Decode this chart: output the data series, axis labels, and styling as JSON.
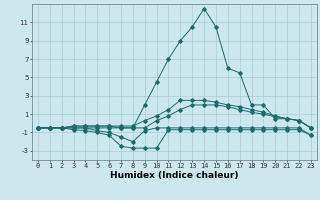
{
  "xlabel": "Humidex (Indice chaleur)",
  "background_color": "#cce8ee",
  "line_color": "#1a6b6b",
  "grid_color": "#aaccd4",
  "x_values": [
    0,
    1,
    2,
    3,
    4,
    5,
    6,
    7,
    8,
    9,
    10,
    11,
    12,
    13,
    14,
    15,
    16,
    17,
    18,
    19,
    20,
    21,
    22,
    23
  ],
  "lines": [
    [
      -0.5,
      -0.5,
      -0.5,
      -0.7,
      -0.8,
      -1.0,
      -1.3,
      -2.5,
      -2.7,
      -2.7,
      -2.7,
      -0.7,
      -0.7,
      -0.7,
      -0.7,
      -0.7,
      -0.7,
      -0.7,
      -0.7,
      -0.7,
      -0.7,
      -0.7,
      -0.7,
      -1.3
    ],
    [
      -0.5,
      -0.5,
      -0.5,
      -0.5,
      -0.5,
      -0.8,
      -1.0,
      -1.5,
      -2.0,
      -0.8,
      -0.5,
      -0.5,
      -0.5,
      -0.5,
      -0.5,
      -0.5,
      -0.5,
      -0.5,
      -0.5,
      -0.5,
      -0.5,
      -0.5,
      -0.5,
      -1.3
    ],
    [
      -0.5,
      -0.5,
      -0.5,
      -0.3,
      -0.3,
      -0.3,
      -0.3,
      -0.5,
      -0.5,
      -0.5,
      0.3,
      0.8,
      1.5,
      2.0,
      2.0,
      2.0,
      1.8,
      1.5,
      1.2,
      1.0,
      0.7,
      0.5,
      0.3,
      -0.5
    ],
    [
      -0.5,
      -0.5,
      -0.5,
      -0.3,
      -0.3,
      -0.3,
      -0.3,
      -0.3,
      -0.3,
      0.3,
      0.8,
      1.5,
      2.5,
      2.5,
      2.5,
      2.3,
      2.0,
      1.8,
      1.5,
      1.2,
      0.8,
      0.5,
      0.3,
      -0.5
    ],
    [
      -0.5,
      -0.5,
      -0.5,
      -0.5,
      -0.5,
      -0.5,
      -0.5,
      -0.5,
      -0.5,
      2.0,
      4.5,
      7.0,
      9.0,
      10.5,
      12.5,
      10.5,
      6.0,
      5.5,
      2.0,
      2.0,
      0.5,
      0.5,
      0.3,
      -0.5
    ]
  ],
  "ylim": [
    -4,
    13
  ],
  "xlim": [
    -0.5,
    23.5
  ],
  "yticks": [
    -3,
    -1,
    1,
    3,
    5,
    7,
    9,
    11
  ],
  "xticks": [
    0,
    1,
    2,
    3,
    4,
    5,
    6,
    7,
    8,
    9,
    10,
    11,
    12,
    13,
    14,
    15,
    16,
    17,
    18,
    19,
    20,
    21,
    22,
    23
  ],
  "label_fontsize": 6.5,
  "tick_fontsize": 5.0
}
